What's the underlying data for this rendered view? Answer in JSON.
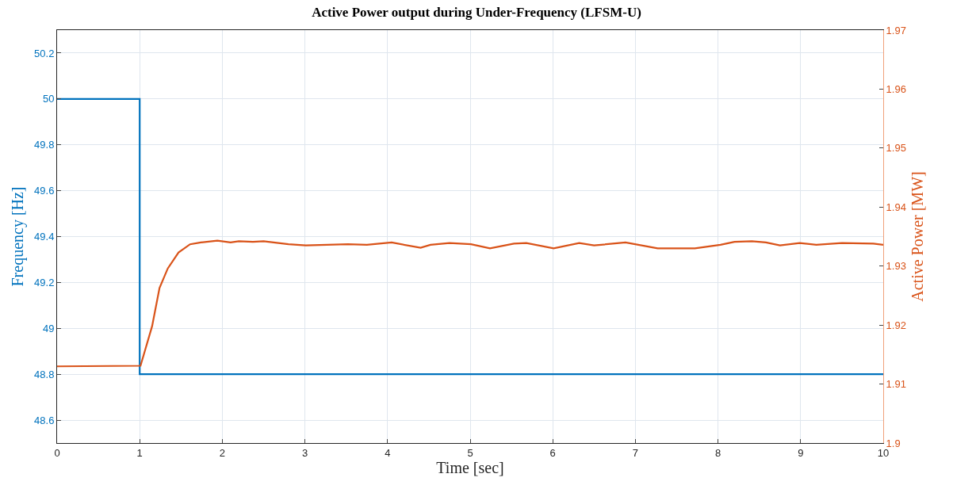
{
  "chart_data": {
    "type": "line",
    "title": "Active Power output during Under-Frequency (LFSM-U)",
    "xlabel": "Time [sec]",
    "ylabel": "Frequency [Hz]",
    "y2label": "Active Power [MW]",
    "series": [
      {
        "type": "step",
        "color": "#0072bd",
        "x": [
          0,
          1,
          10
        ],
        "values": [
          50,
          48.8,
          48.8
        ]
      },
      {
        "axis": "y2",
        "color": "#d95319",
        "x": [
          0,
          1.01,
          1.15,
          1.24,
          1.34,
          1.47,
          1.61,
          1.74,
          1.94,
          2.1,
          2.2,
          2.37,
          2.5,
          2.8,
          3.01,
          3.52,
          3.75,
          4.05,
          4.4,
          4.52,
          4.75,
          4.88,
          5.01,
          5.24,
          5.53,
          5.68,
          6.01,
          6.32,
          6.5,
          6.88,
          7.27,
          7.72,
          8.03,
          8.2,
          8.41,
          8.58,
          8.75,
          8.99,
          9.19,
          9.5,
          9.88,
          10
        ],
        "values": [
          1.913,
          1.9131,
          1.9198,
          1.9263,
          1.9296,
          1.9323,
          1.9337,
          1.934,
          1.9343,
          1.934,
          1.9342,
          1.9341,
          1.9342,
          1.9337,
          1.9335,
          1.9337,
          1.9336,
          1.934,
          1.9331,
          1.9336,
          1.9339,
          1.9338,
          1.9337,
          1.933,
          1.9338,
          1.9339,
          1.933,
          1.9339,
          1.9335,
          1.934,
          1.933,
          1.933,
          1.9336,
          1.9341,
          1.9342,
          1.934,
          1.9335,
          1.9339,
          1.9336,
          1.9339,
          1.9338,
          1.9336
        ]
      }
    ],
    "xlim": [
      0,
      10
    ],
    "xticks": [
      0,
      1,
      2,
      3,
      4,
      5,
      6,
      7,
      8,
      9,
      10
    ],
    "ylim": [
      48.5,
      50.3
    ],
    "yticks": [
      48.6,
      48.8,
      49,
      49.2,
      49.4,
      49.6,
      49.8,
      50,
      50.2
    ],
    "y2lim": [
      1.9,
      1.97
    ],
    "y2ticks": [
      1.9,
      1.91,
      1.92,
      1.93,
      1.94,
      1.95,
      1.96,
      1.97
    ],
    "grid": true,
    "line_style": "solid"
  }
}
